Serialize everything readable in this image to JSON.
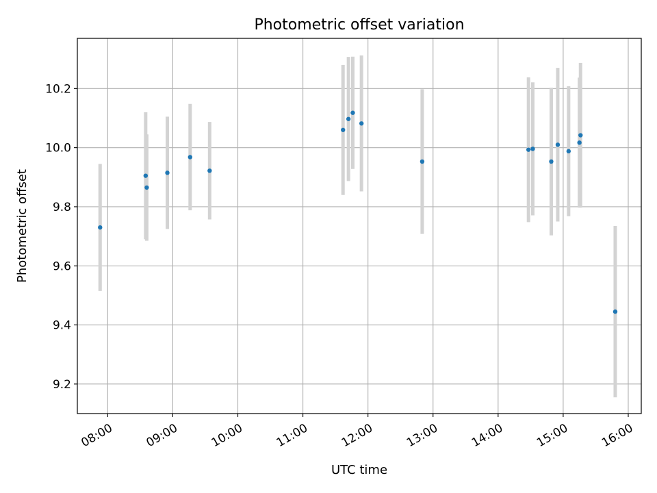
{
  "chart_data": {
    "type": "scatter",
    "title": "Photometric offset variation",
    "xlabel": "UTC time",
    "ylabel": "Photometric offset",
    "x_type": "time",
    "xlim": [
      "07:32",
      "16:12"
    ],
    "ylim": [
      9.1,
      10.37
    ],
    "x_ticks": [
      "08:00",
      "09:00",
      "10:00",
      "11:00",
      "12:00",
      "13:00",
      "14:00",
      "15:00",
      "16:00"
    ],
    "y_ticks": [
      "9.2",
      "9.4",
      "9.6",
      "9.8",
      "10.0",
      "10.2"
    ],
    "grid": true,
    "colors": {
      "points": "#1f77b4",
      "errorbars": "#d3d3d3",
      "grid": "#b0b0b0"
    },
    "points": [
      {
        "x": "07:53",
        "y": 9.73,
        "err": 0.215
      },
      {
        "x": "08:35",
        "y": 9.905,
        "err": 0.215
      },
      {
        "x": "08:36",
        "y": 9.865,
        "err": 0.18
      },
      {
        "x": "08:55",
        "y": 9.915,
        "err": 0.19
      },
      {
        "x": "09:16",
        "y": 9.968,
        "err": 0.18
      },
      {
        "x": "09:34",
        "y": 9.922,
        "err": 0.165
      },
      {
        "x": "11:37",
        "y": 10.06,
        "err": 0.22
      },
      {
        "x": "11:42",
        "y": 10.097,
        "err": 0.21
      },
      {
        "x": "11:46",
        "y": 10.118,
        "err": 0.19
      },
      {
        "x": "11:54",
        "y": 10.082,
        "err": 0.23
      },
      {
        "x": "12:50",
        "y": 9.953,
        "err": 0.245
      },
      {
        "x": "14:28",
        "y": 9.993,
        "err": 0.245
      },
      {
        "x": "14:32",
        "y": 9.996,
        "err": 0.225
      },
      {
        "x": "14:49",
        "y": 9.953,
        "err": 0.25
      },
      {
        "x": "14:55",
        "y": 10.01,
        "err": 0.26
      },
      {
        "x": "15:05",
        "y": 9.988,
        "err": 0.22
      },
      {
        "x": "15:15",
        "y": 10.017,
        "err": 0.22
      },
      {
        "x": "15:16",
        "y": 10.042,
        "err": 0.245
      },
      {
        "x": "15:48",
        "y": 9.445,
        "err": 0.29
      }
    ]
  }
}
